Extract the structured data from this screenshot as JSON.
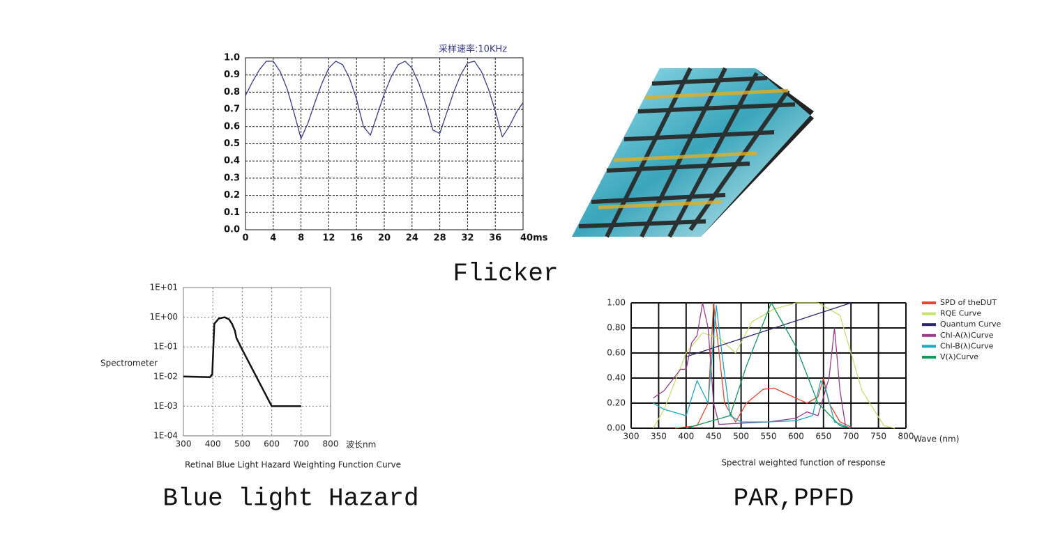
{
  "captions": [
    "Flicker",
    "Blue light Hazard",
    "PAR,PPFD"
  ],
  "chart_data": [
    {
      "type": "line",
      "annotation": "采样速率:10KHz",
      "color": "#3a3a8c",
      "x": [
        0,
        1,
        2,
        3,
        4,
        5,
        6,
        7,
        8,
        9,
        10,
        11,
        12,
        13,
        14,
        15,
        16,
        17,
        18,
        19,
        20,
        21,
        22,
        23,
        24,
        25,
        26,
        27,
        28,
        29,
        30,
        31,
        32,
        33,
        34,
        35,
        36,
        37,
        38,
        39,
        40
      ],
      "values": [
        0.78,
        0.86,
        0.93,
        0.98,
        0.98,
        0.92,
        0.82,
        0.68,
        0.53,
        0.62,
        0.74,
        0.85,
        0.94,
        0.98,
        0.96,
        0.88,
        0.76,
        0.6,
        0.55,
        0.67,
        0.79,
        0.89,
        0.96,
        0.98,
        0.94,
        0.85,
        0.73,
        0.58,
        0.56,
        0.68,
        0.8,
        0.9,
        0.97,
        0.98,
        0.92,
        0.82,
        0.69,
        0.54,
        0.6,
        0.68,
        0.74
      ],
      "xlim": [
        0,
        40
      ],
      "ylim": [
        0,
        1
      ],
      "xticks": [
        0,
        4,
        8,
        12,
        16,
        20,
        24,
        28,
        32,
        36,
        {
          "value": 40,
          "label": "40ms"
        }
      ],
      "yticks": [
        {
          "value": 0,
          "label": "0.0"
        },
        0.1,
        0.2,
        0.3,
        0.4,
        0.5,
        0.6,
        0.7,
        0.8,
        0.9,
        {
          "value": 1,
          "label": "1.0"
        }
      ],
      "grid": true
    },
    {
      "type": "line",
      "title": "Retinal Blue Light Hazard Weighting Function Curve",
      "y_label": "Spectrometer",
      "x_label": "波长nm",
      "color": "#111111",
      "log_y": true,
      "x": [
        300,
        390,
        398,
        405,
        420,
        440,
        455,
        465,
        475,
        480,
        500,
        600,
        700
      ],
      "values": [
        0.01,
        0.0095,
        0.012,
        0.6,
        0.9,
        1.0,
        0.85,
        0.6,
        0.35,
        0.2,
        0.08,
        0.001,
        0.001
      ],
      "xlim": [
        300,
        800
      ],
      "ylim": [
        0.0001,
        10
      ],
      "xticks": [
        300,
        400,
        500,
        600,
        700,
        800
      ],
      "yticks": [
        {
          "value": 0.0001,
          "label": "1E-04"
        },
        {
          "value": 0.001,
          "label": "1E-03"
        },
        {
          "value": 0.01,
          "label": "1E-02"
        },
        {
          "value": 0.1,
          "label": "1E-01"
        },
        {
          "value": 1,
          "label": "1E+00"
        },
        {
          "value": 10,
          "label": "1E+01"
        }
      ],
      "grid": true
    },
    {
      "type": "line",
      "title": "Spectral weighted function of response",
      "x_label": "Wave (nm)",
      "xlim": [
        300,
        800
      ],
      "ylim": [
        0,
        1
      ],
      "xticks": [
        300,
        350,
        400,
        450,
        500,
        550,
        600,
        650,
        700,
        750,
        800
      ],
      "yticks": [
        {
          "value": 0,
          "label": "0.00"
        },
        {
          "value": 0.2,
          "label": "0.20"
        },
        {
          "value": 0.4,
          "label": "0.40"
        },
        {
          "value": 0.6,
          "label": "0.60"
        },
        {
          "value": 0.8,
          "label": "0.80"
        },
        {
          "value": 1,
          "label": "1.00"
        }
      ],
      "grid": true,
      "series": [
        {
          "name": "SPD of theDUT",
          "color": "#e8452a",
          "x": [
            380,
            420,
            440,
            450,
            460,
            470,
            490,
            510,
            540,
            560,
            580,
            620,
            640,
            650,
            660,
            680,
            700
          ],
          "values": [
            0,
            0.02,
            0.2,
            1,
            0.6,
            0.2,
            0.05,
            0.2,
            0.31,
            0.32,
            0.28,
            0.2,
            0.25,
            0.4,
            0.2,
            0.05,
            0.01
          ]
        },
        {
          "name": "RQE Curve",
          "color": "#c9e06a",
          "x": [
            340,
            360,
            400,
            430,
            460,
            490,
            520,
            560,
            600,
            640,
            680,
            700,
            720,
            760,
            780
          ],
          "values": [
            0,
            0.15,
            0.6,
            0.76,
            0.72,
            0.6,
            0.85,
            0.95,
            1,
            1,
            0.9,
            0.6,
            0.3,
            0.02,
            0
          ]
        },
        {
          "name": "Quantum Curve",
          "color": "#2a2470",
          "x": [
            400,
            700
          ],
          "values": [
            0.57,
            1
          ]
        },
        {
          "name": "Chl-A(λ)Curve",
          "color": "#9a3a8a",
          "x": [
            340,
            360,
            390,
            400,
            410,
            420,
            430,
            440,
            450,
            460,
            500,
            550,
            600,
            620,
            640,
            660,
            670,
            680,
            690
          ],
          "values": [
            0.24,
            0.3,
            0.47,
            0.47,
            0.68,
            0.74,
            1,
            0.8,
            0.2,
            0.03,
            0.04,
            0.05,
            0.08,
            0.13,
            0.1,
            0.4,
            0.8,
            0.3,
            0.02
          ]
        },
        {
          "name": "Chl-B(λ)Curve",
          "color": "#19a9c0",
          "x": [
            340,
            360,
            400,
            420,
            440,
            455,
            465,
            480,
            500,
            550,
            600,
            630,
            645,
            655,
            670,
            700
          ],
          "values": [
            0.2,
            0.15,
            0.1,
            0.38,
            0.2,
            0.98,
            0.6,
            0.1,
            0.05,
            0.05,
            0.06,
            0.1,
            0.38,
            0.3,
            0.05,
            0
          ]
        },
        {
          "name": "V(λ)Curve",
          "color": "#0f9a5a",
          "x": [
            400,
            480,
            510,
            555,
            600,
            640,
            680,
            700
          ],
          "values": [
            0,
            0.1,
            0.5,
            1,
            0.65,
            0.2,
            0.02,
            0
          ]
        }
      ]
    }
  ]
}
